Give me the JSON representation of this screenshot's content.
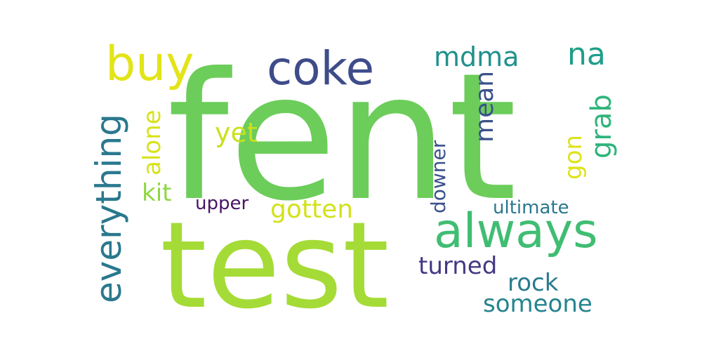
{
  "words": [
    {
      "text": "fent",
      "color": "#6ccd5a"
    },
    {
      "text": "test",
      "color": "#a5db36"
    },
    {
      "text": "always",
      "color": "#40bd72"
    },
    {
      "text": "coke",
      "color": "#3e4c8a"
    },
    {
      "text": "buy",
      "color": "#e2e418"
    },
    {
      "text": "everything",
      "color": "#2a788e"
    },
    {
      "text": "grab",
      "color": "#2fb47c"
    },
    {
      "text": "mdma",
      "color": "#21918c"
    },
    {
      "text": "na",
      "color": "#1f9e89"
    },
    {
      "text": "mean",
      "color": "#3b528b"
    },
    {
      "text": "alone",
      "color": "#d8e219"
    },
    {
      "text": "yet",
      "color": "#cae11f"
    },
    {
      "text": "gon",
      "color": "#dde318"
    },
    {
      "text": "downer",
      "color": "#3b528b"
    },
    {
      "text": "kit",
      "color": "#8fd744"
    },
    {
      "text": "upper",
      "color": "#481467"
    },
    {
      "text": "gotten",
      "color": "#d2e21b"
    },
    {
      "text": "ultimate",
      "color": "#2a788e"
    },
    {
      "text": "turned",
      "color": "#443983"
    },
    {
      "text": "rock",
      "color": "#297b8e"
    },
    {
      "text": "someone",
      "color": "#25848e"
    }
  ]
}
